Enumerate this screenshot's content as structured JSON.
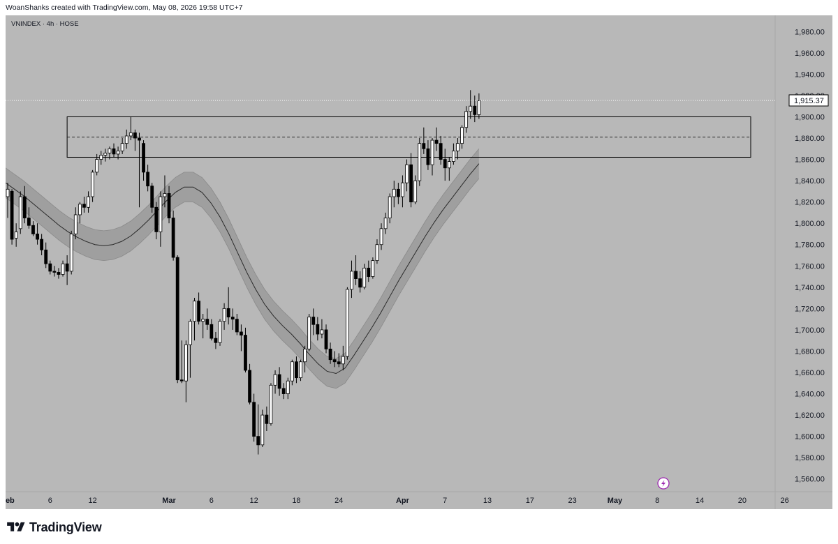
{
  "header": {
    "text": "WoanShanks created with TradingView.com, May 08, 2026 19:58 UTC+7"
  },
  "symbol_label": "VNINDEX · 4h · HOSE",
  "footer": {
    "brand": "TradingView"
  },
  "last_price_label": "1,915.37",
  "colors": {
    "background": "#b8b8b8",
    "up_candle_body": "#ffffff",
    "down_candle_body": "#000000",
    "wick": "#000000",
    "band_fill": "#9a9a9a",
    "band_line": "#2a2a2a",
    "zone_border": "#000000"
  },
  "chart_data": {
    "type": "candlestick",
    "ylim": [
      1550,
      1990
    ],
    "y_ticks": [
      1560,
      1580,
      1600,
      1620,
      1640,
      1660,
      1680,
      1700,
      1720,
      1740,
      1760,
      1780,
      1800,
      1820,
      1840,
      1860,
      1880,
      1900,
      1920,
      1940,
      1960,
      1980
    ],
    "y_tick_labels": [
      "1,560.00",
      "1,580.00",
      "1,600.00",
      "1,620.00",
      "1,640.00",
      "1,660.00",
      "1,680.00",
      "1,700.00",
      "1,720.00",
      "1,740.00",
      "1,760.00",
      "1,780.00",
      "1,800.00",
      "1,820.00",
      "1,840.00",
      "1,860.00",
      "1,880.00",
      "1,900.00",
      "1,920.00",
      "1,940.00",
      "1,960.00",
      "1,980.00"
    ],
    "x_ticks": [
      {
        "label": "Feb",
        "bold": true,
        "index": 0
      },
      {
        "label": "6",
        "bold": false,
        "index": 10
      },
      {
        "label": "12",
        "bold": false,
        "index": 20
      },
      {
        "label": "Mar",
        "bold": true,
        "index": 38
      },
      {
        "label": "6",
        "bold": false,
        "index": 48
      },
      {
        "label": "12",
        "bold": false,
        "index": 58
      },
      {
        "label": "18",
        "bold": false,
        "index": 68
      },
      {
        "label": "24",
        "bold": false,
        "index": 78
      },
      {
        "label": "Apr",
        "bold": true,
        "index": 93
      },
      {
        "label": "7",
        "bold": false,
        "index": 103
      },
      {
        "label": "13",
        "bold": false,
        "index": 113
      },
      {
        "label": "17",
        "bold": false,
        "index": 123
      },
      {
        "label": "23",
        "bold": false,
        "index": 133
      },
      {
        "label": "May",
        "bold": true,
        "index": 143
      },
      {
        "label": "8",
        "bold": false,
        "index": 153
      },
      {
        "label": "14",
        "bold": false,
        "index": 163
      },
      {
        "label": "20",
        "bold": false,
        "index": 173
      },
      {
        "label": "26",
        "bold": false,
        "index": 183
      }
    ],
    "last_price": 1915.37,
    "resistance_zone": {
      "top": 1900,
      "bottom": 1862,
      "mid": 1881,
      "start_index": 14,
      "end_index": 175
    },
    "candles": [
      [
        1825,
        1838,
        1805,
        1832
      ],
      [
        1830,
        1832,
        1780,
        1785
      ],
      [
        1786,
        1800,
        1778,
        1792
      ],
      [
        1795,
        1830,
        1790,
        1825
      ],
      [
        1825,
        1835,
        1800,
        1805
      ],
      [
        1805,
        1815,
        1795,
        1798
      ],
      [
        1798,
        1802,
        1788,
        1790
      ],
      [
        1790,
        1800,
        1780,
        1785
      ],
      [
        1785,
        1790,
        1770,
        1775
      ],
      [
        1775,
        1782,
        1758,
        1762
      ],
      [
        1762,
        1765,
        1752,
        1755
      ],
      [
        1755,
        1760,
        1750,
        1754
      ],
      [
        1754,
        1758,
        1748,
        1752
      ],
      [
        1752,
        1765,
        1750,
        1762
      ],
      [
        1762,
        1770,
        1742,
        1755
      ],
      [
        1755,
        1793,
        1752,
        1790
      ],
      [
        1790,
        1815,
        1785,
        1808
      ],
      [
        1808,
        1820,
        1800,
        1818
      ],
      [
        1818,
        1825,
        1810,
        1815
      ],
      [
        1815,
        1830,
        1810,
        1825
      ],
      [
        1825,
        1850,
        1820,
        1848
      ],
      [
        1848,
        1865,
        1845,
        1860
      ],
      [
        1860,
        1868,
        1855,
        1864
      ],
      [
        1864,
        1870,
        1858,
        1866
      ],
      [
        1866,
        1872,
        1860,
        1870
      ],
      [
        1870,
        1875,
        1862,
        1865
      ],
      [
        1865,
        1872,
        1860,
        1868
      ],
      [
        1868,
        1880,
        1865,
        1875
      ],
      [
        1875,
        1888,
        1870,
        1882
      ],
      [
        1882,
        1900,
        1878,
        1885
      ],
      [
        1885,
        1888,
        1868,
        1880
      ],
      [
        1880,
        1885,
        1815,
        1878
      ],
      [
        1875,
        1878,
        1840,
        1848
      ],
      [
        1848,
        1855,
        1830,
        1835
      ],
      [
        1835,
        1838,
        1810,
        1815
      ],
      [
        1815,
        1820,
        1785,
        1792
      ],
      [
        1792,
        1830,
        1778,
        1825
      ],
      [
        1825,
        1845,
        1815,
        1828
      ],
      [
        1828,
        1835,
        1800,
        1805
      ],
      [
        1805,
        1812,
        1765,
        1768
      ],
      [
        1768,
        1770,
        1650,
        1653
      ],
      [
        1653,
        1690,
        1650,
        1652
      ],
      [
        1652,
        1690,
        1632,
        1686
      ],
      [
        1686,
        1710,
        1655,
        1708
      ],
      [
        1708,
        1730,
        1690,
        1727
      ],
      [
        1727,
        1735,
        1705,
        1708
      ],
      [
        1708,
        1715,
        1692,
        1710
      ],
      [
        1710,
        1720,
        1700,
        1705
      ],
      [
        1705,
        1710,
        1690,
        1692
      ],
      [
        1692,
        1698,
        1682,
        1688
      ],
      [
        1688,
        1710,
        1685,
        1708
      ],
      [
        1708,
        1725,
        1700,
        1720
      ],
      [
        1720,
        1740,
        1705,
        1712
      ],
      [
        1712,
        1720,
        1700,
        1710
      ],
      [
        1710,
        1715,
        1695,
        1698
      ],
      [
        1698,
        1705,
        1680,
        1695
      ],
      [
        1695,
        1702,
        1660,
        1662
      ],
      [
        1662,
        1668,
        1630,
        1632
      ],
      [
        1632,
        1640,
        1595,
        1600
      ],
      [
        1600,
        1630,
        1583,
        1592
      ],
      [
        1592,
        1625,
        1590,
        1620
      ],
      [
        1620,
        1628,
        1605,
        1612
      ],
      [
        1612,
        1650,
        1610,
        1648
      ],
      [
        1648,
        1662,
        1640,
        1658
      ],
      [
        1658,
        1665,
        1638,
        1645
      ],
      [
        1645,
        1650,
        1635,
        1640
      ],
      [
        1640,
        1655,
        1635,
        1652
      ],
      [
        1652,
        1672,
        1648,
        1670
      ],
      [
        1670,
        1675,
        1650,
        1655
      ],
      [
        1655,
        1672,
        1652,
        1670
      ],
      [
        1670,
        1685,
        1660,
        1682
      ],
      [
        1682,
        1715,
        1680,
        1712
      ],
      [
        1712,
        1720,
        1695,
        1705
      ],
      [
        1705,
        1712,
        1690,
        1696
      ],
      [
        1696,
        1710,
        1692,
        1700
      ],
      [
        1700,
        1705,
        1678,
        1682
      ],
      [
        1682,
        1688,
        1668,
        1672
      ],
      [
        1672,
        1680,
        1665,
        1670
      ],
      [
        1670,
        1678,
        1665,
        1668
      ],
      [
        1668,
        1685,
        1662,
        1675
      ],
      [
        1675,
        1740,
        1672,
        1738
      ],
      [
        1738,
        1765,
        1730,
        1755
      ],
      [
        1755,
        1770,
        1742,
        1748
      ],
      [
        1748,
        1755,
        1735,
        1740
      ],
      [
        1740,
        1762,
        1738,
        1758
      ],
      [
        1758,
        1765,
        1745,
        1750
      ],
      [
        1750,
        1768,
        1748,
        1765
      ],
      [
        1765,
        1785,
        1762,
        1780
      ],
      [
        1780,
        1800,
        1775,
        1795
      ],
      [
        1795,
        1810,
        1790,
        1805
      ],
      [
        1805,
        1828,
        1800,
        1825
      ],
      [
        1825,
        1840,
        1815,
        1832
      ],
      [
        1832,
        1838,
        1818,
        1825
      ],
      [
        1825,
        1845,
        1815,
        1838
      ],
      [
        1838,
        1860,
        1830,
        1855
      ],
      [
        1855,
        1866,
        1815,
        1820
      ],
      [
        1820,
        1845,
        1818,
        1840
      ],
      [
        1840,
        1880,
        1835,
        1875
      ],
      [
        1875,
        1890,
        1865,
        1870
      ],
      [
        1870,
        1878,
        1850,
        1855
      ],
      [
        1855,
        1880,
        1845,
        1878
      ],
      [
        1878,
        1890,
        1868,
        1875
      ],
      [
        1875,
        1882,
        1855,
        1860
      ],
      [
        1860,
        1870,
        1840,
        1852
      ],
      [
        1852,
        1862,
        1840,
        1858
      ],
      [
        1858,
        1875,
        1855,
        1868
      ],
      [
        1868,
        1880,
        1860,
        1875
      ],
      [
        1875,
        1892,
        1870,
        1890
      ],
      [
        1890,
        1910,
        1885,
        1905
      ],
      [
        1905,
        1925,
        1898,
        1910
      ],
      [
        1910,
        1920,
        1895,
        1902
      ],
      [
        1902,
        1922,
        1898,
        1915
      ]
    ],
    "band": {
      "upper": [
        1852,
        1846,
        1840,
        1833,
        1826,
        1819,
        1812,
        1806,
        1801,
        1797,
        1794,
        1793,
        1794,
        1797,
        1802,
        1809,
        1817,
        1826,
        1835,
        1843,
        1848,
        1848,
        1843,
        1833,
        1820,
        1804,
        1786,
        1768,
        1752,
        1738,
        1727,
        1718,
        1710,
        1701,
        1691,
        1682,
        1675,
        1673,
        1678,
        1690,
        1703,
        1716,
        1730,
        1745,
        1760,
        1774,
        1788,
        1802,
        1815,
        1827,
        1838,
        1849,
        1860,
        1870
      ],
      "mid": [
        1838,
        1832,
        1826,
        1819,
        1812,
        1805,
        1798,
        1792,
        1787,
        1783,
        1780,
        1779,
        1780,
        1783,
        1788,
        1795,
        1803,
        1812,
        1821,
        1829,
        1834,
        1834,
        1829,
        1819,
        1806,
        1790,
        1772,
        1754,
        1738,
        1724,
        1713,
        1704,
        1696,
        1687,
        1677,
        1668,
        1661,
        1659,
        1664,
        1676,
        1689,
        1702,
        1716,
        1731,
        1746,
        1760,
        1774,
        1788,
        1801,
        1813,
        1824,
        1835,
        1846,
        1856
      ],
      "lower": [
        1824,
        1818,
        1812,
        1805,
        1798,
        1791,
        1784,
        1778,
        1773,
        1769,
        1766,
        1765,
        1766,
        1769,
        1774,
        1781,
        1789,
        1798,
        1807,
        1815,
        1820,
        1820,
        1815,
        1805,
        1792,
        1776,
        1758,
        1740,
        1724,
        1710,
        1699,
        1690,
        1682,
        1673,
        1663,
        1654,
        1647,
        1645,
        1650,
        1662,
        1675,
        1688,
        1702,
        1717,
        1732,
        1746,
        1760,
        1774,
        1787,
        1799,
        1810,
        1821,
        1832,
        1842
      ]
    }
  }
}
